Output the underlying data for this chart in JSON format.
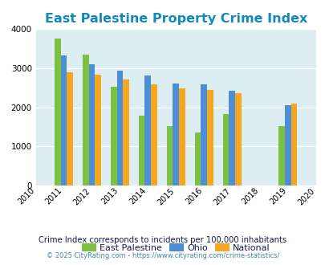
{
  "title": "East Palestine Property Crime Index",
  "all_years": [
    2010,
    2011,
    2012,
    2013,
    2014,
    2015,
    2016,
    2017,
    2018,
    2019,
    2020
  ],
  "bar_years": [
    2011,
    2012,
    2013,
    2014,
    2015,
    2016,
    2017,
    2019
  ],
  "east_palestine": [
    3760,
    3340,
    2520,
    1790,
    1530,
    1360,
    1820,
    1530
  ],
  "ohio": [
    3330,
    3100,
    2940,
    2810,
    2600,
    2580,
    2430,
    2050
  ],
  "national": [
    2900,
    2840,
    2720,
    2590,
    2490,
    2450,
    2360,
    2090
  ],
  "bar_colors": {
    "east_palestine": "#7dc143",
    "ohio": "#4c8fd6",
    "national": "#f5a623"
  },
  "legend_labels": [
    "East Palestine",
    "Ohio",
    "National"
  ],
  "ylim": [
    0,
    4000
  ],
  "yticks": [
    0,
    1000,
    2000,
    3000,
    4000
  ],
  "background_color": "#ddeef3",
  "title_color": "#1189bb",
  "title_fontsize": 11.5,
  "subtitle": "Crime Index corresponds to incidents per 100,000 inhabitants",
  "footnote": "© 2025 CityRating.com - https://www.cityrating.com/crime-statistics/",
  "subtitle_color": "#1a1a4e",
  "footnote_color": "#4488aa",
  "bar_width": 0.22
}
